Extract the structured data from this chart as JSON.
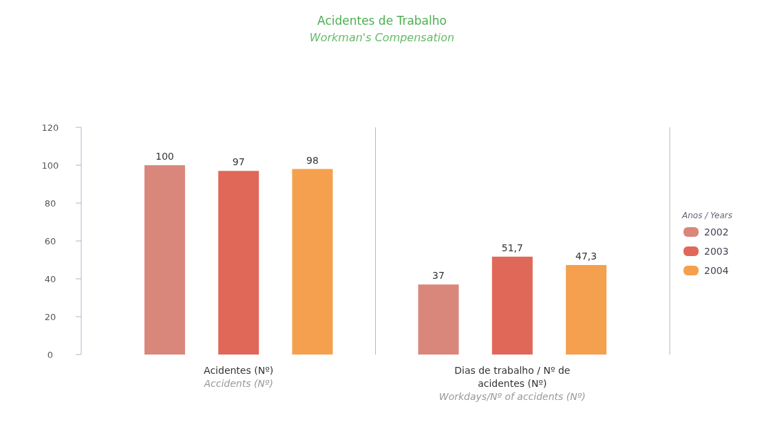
{
  "chart_data": {
    "type": "bar",
    "title": "Acidentes de Trabalho",
    "subtitle": "Workman's Compensation",
    "categories": [
      "Acidentes (Nº)\nAccidents (Nº)",
      "Dias de trabalho / Nº de acidentes (Nº)\nWorkdays/Nº of accidents (Nº)"
    ],
    "series": [
      {
        "name": "2002",
        "color": "#d9877b",
        "values": [
          100,
          37
        ],
        "value_labels": [
          "100",
          "37"
        ]
      },
      {
        "name": "2003",
        "color": "#e06858",
        "values": [
          97,
          51.7
        ],
        "value_labels": [
          "97",
          "51,7"
        ]
      },
      {
        "name": "2004",
        "color": "#f5a04e",
        "values": [
          98,
          47.3
        ],
        "value_labels": [
          "98",
          "47,3"
        ]
      }
    ],
    "ylim": [
      0,
      120
    ],
    "yticks": [
      0,
      20,
      40,
      60,
      80,
      100,
      120
    ],
    "legend": "right",
    "legend_title": "Anos / Years"
  }
}
